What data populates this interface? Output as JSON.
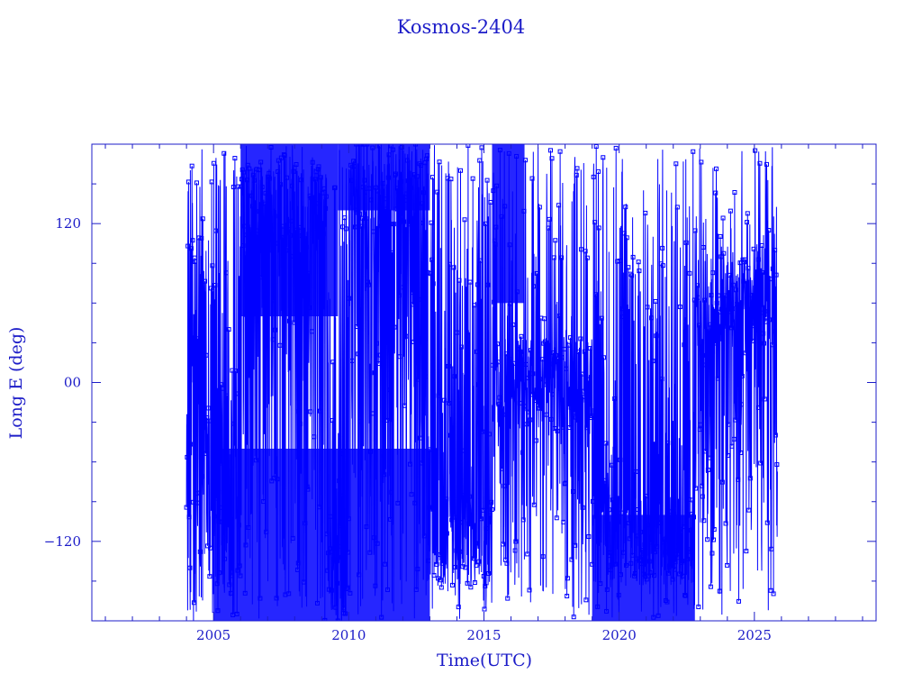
{
  "chart_data": {
    "type": "line",
    "title": "Kosmos-2404",
    "xlabel": "Time(UTC)",
    "ylabel": "Long E (deg)",
    "xlim": [
      2000.5,
      2029.5
    ],
    "ylim": [
      -180,
      180
    ],
    "x_ticks": [
      2005,
      2010,
      2015,
      2020,
      2025
    ],
    "y_ticks": [
      120,
      0,
      -120
    ],
    "y_tick_labels": [
      "120",
      "00",
      "−120"
    ],
    "x_minor_step": 1,
    "y_minor_step": 30,
    "grid": false,
    "legend": "none",
    "marker": "square",
    "series_note_color": "#0000ff",
    "series": [
      {
        "x_start": 2004.0,
        "x_end": 2025.85,
        "y_min": -180,
        "y_max": 180,
        "plateaus": [
          {
            "x": [
              2004.8,
              2006.0
            ],
            "y": -120
          },
          {
            "x": [
              2006.0,
              2009.2
            ],
            "y": 130
          },
          {
            "x": [
              2009.2,
              2010.0
            ],
            "y": -150
          },
          {
            "x": [
              2010.0,
              2012.9
            ],
            "y": 150
          },
          {
            "x": [
              2012.9,
              2015.3
            ],
            "y": -120
          },
          {
            "x": [
              2015.3,
              2019.0
            ],
            "y": 0
          },
          {
            "x": [
              2019.0,
              2022.8
            ],
            "y": -120
          },
          {
            "x": [
              2022.8,
              2025.85
            ],
            "y": 60
          }
        ]
      }
    ]
  },
  "colors": {
    "axes": "#1c1cc8",
    "data": "#0000ff",
    "text": "#1c1cc8"
  }
}
